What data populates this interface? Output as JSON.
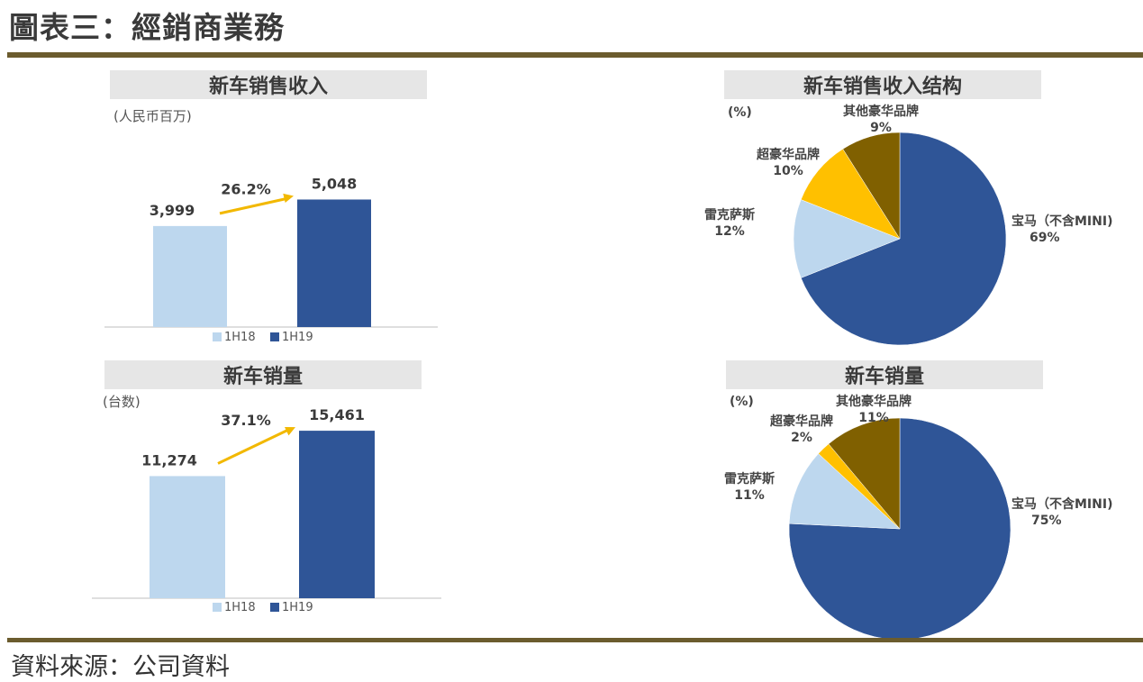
{
  "page": {
    "title": "圖表三：經銷商業務",
    "source": "資料來源：公司資料"
  },
  "colors": {
    "rule": "#6b5c2e",
    "bar_1h18": "#bdd7ee",
    "bar_1h19": "#2f5597",
    "arrow": "#f2b800",
    "pie_bmw": "#2f5597",
    "pie_lexus": "#bdd7ee",
    "pie_superlux": "#ffc000",
    "pie_other": "#806000"
  },
  "chart_data": [
    {
      "type": "bar",
      "title": "新车销售收入",
      "unit_label": "(人民币百万)",
      "categories": [
        "1H18",
        "1H19"
      ],
      "values": [
        3999,
        5048
      ],
      "value_labels": [
        "3,999",
        "5,048"
      ],
      "growth_label": "26.2%",
      "legend": [
        "1H18",
        "1H19"
      ],
      "ylim": [
        0,
        5600
      ]
    },
    {
      "type": "pie",
      "title": "新车销售收入结构",
      "unit_label": "(%)",
      "slices": [
        {
          "name": "宝马（不含MINI)",
          "value": 69,
          "label": "69%"
        },
        {
          "name": "雷克萨斯",
          "value": 12,
          "label": "12%"
        },
        {
          "name": "超豪华品牌",
          "value": 10,
          "label": "10%"
        },
        {
          "name": "其他豪华品牌",
          "value": 9,
          "label": "9%"
        }
      ]
    },
    {
      "type": "bar",
      "title": "新车销量",
      "unit_label": "(台数)",
      "categories": [
        "1H18",
        "1H19"
      ],
      "values": [
        11274,
        15461
      ],
      "value_labels": [
        "11,274",
        "15,461"
      ],
      "growth_label": "37.1%",
      "legend": [
        "1H18",
        "1H19"
      ],
      "ylim": [
        0,
        16800
      ]
    },
    {
      "type": "pie",
      "title": "新车销量",
      "unit_label": "(%)",
      "slices": [
        {
          "name": "宝马（不含MINI)",
          "value": 75,
          "label": "75%"
        },
        {
          "name": "雷克萨斯",
          "value": 11,
          "label": "11%"
        },
        {
          "name": "超豪华品牌",
          "value": 2,
          "label": "2%"
        },
        {
          "name": "其他豪华品牌",
          "value": 11,
          "label": "11%"
        }
      ]
    }
  ]
}
